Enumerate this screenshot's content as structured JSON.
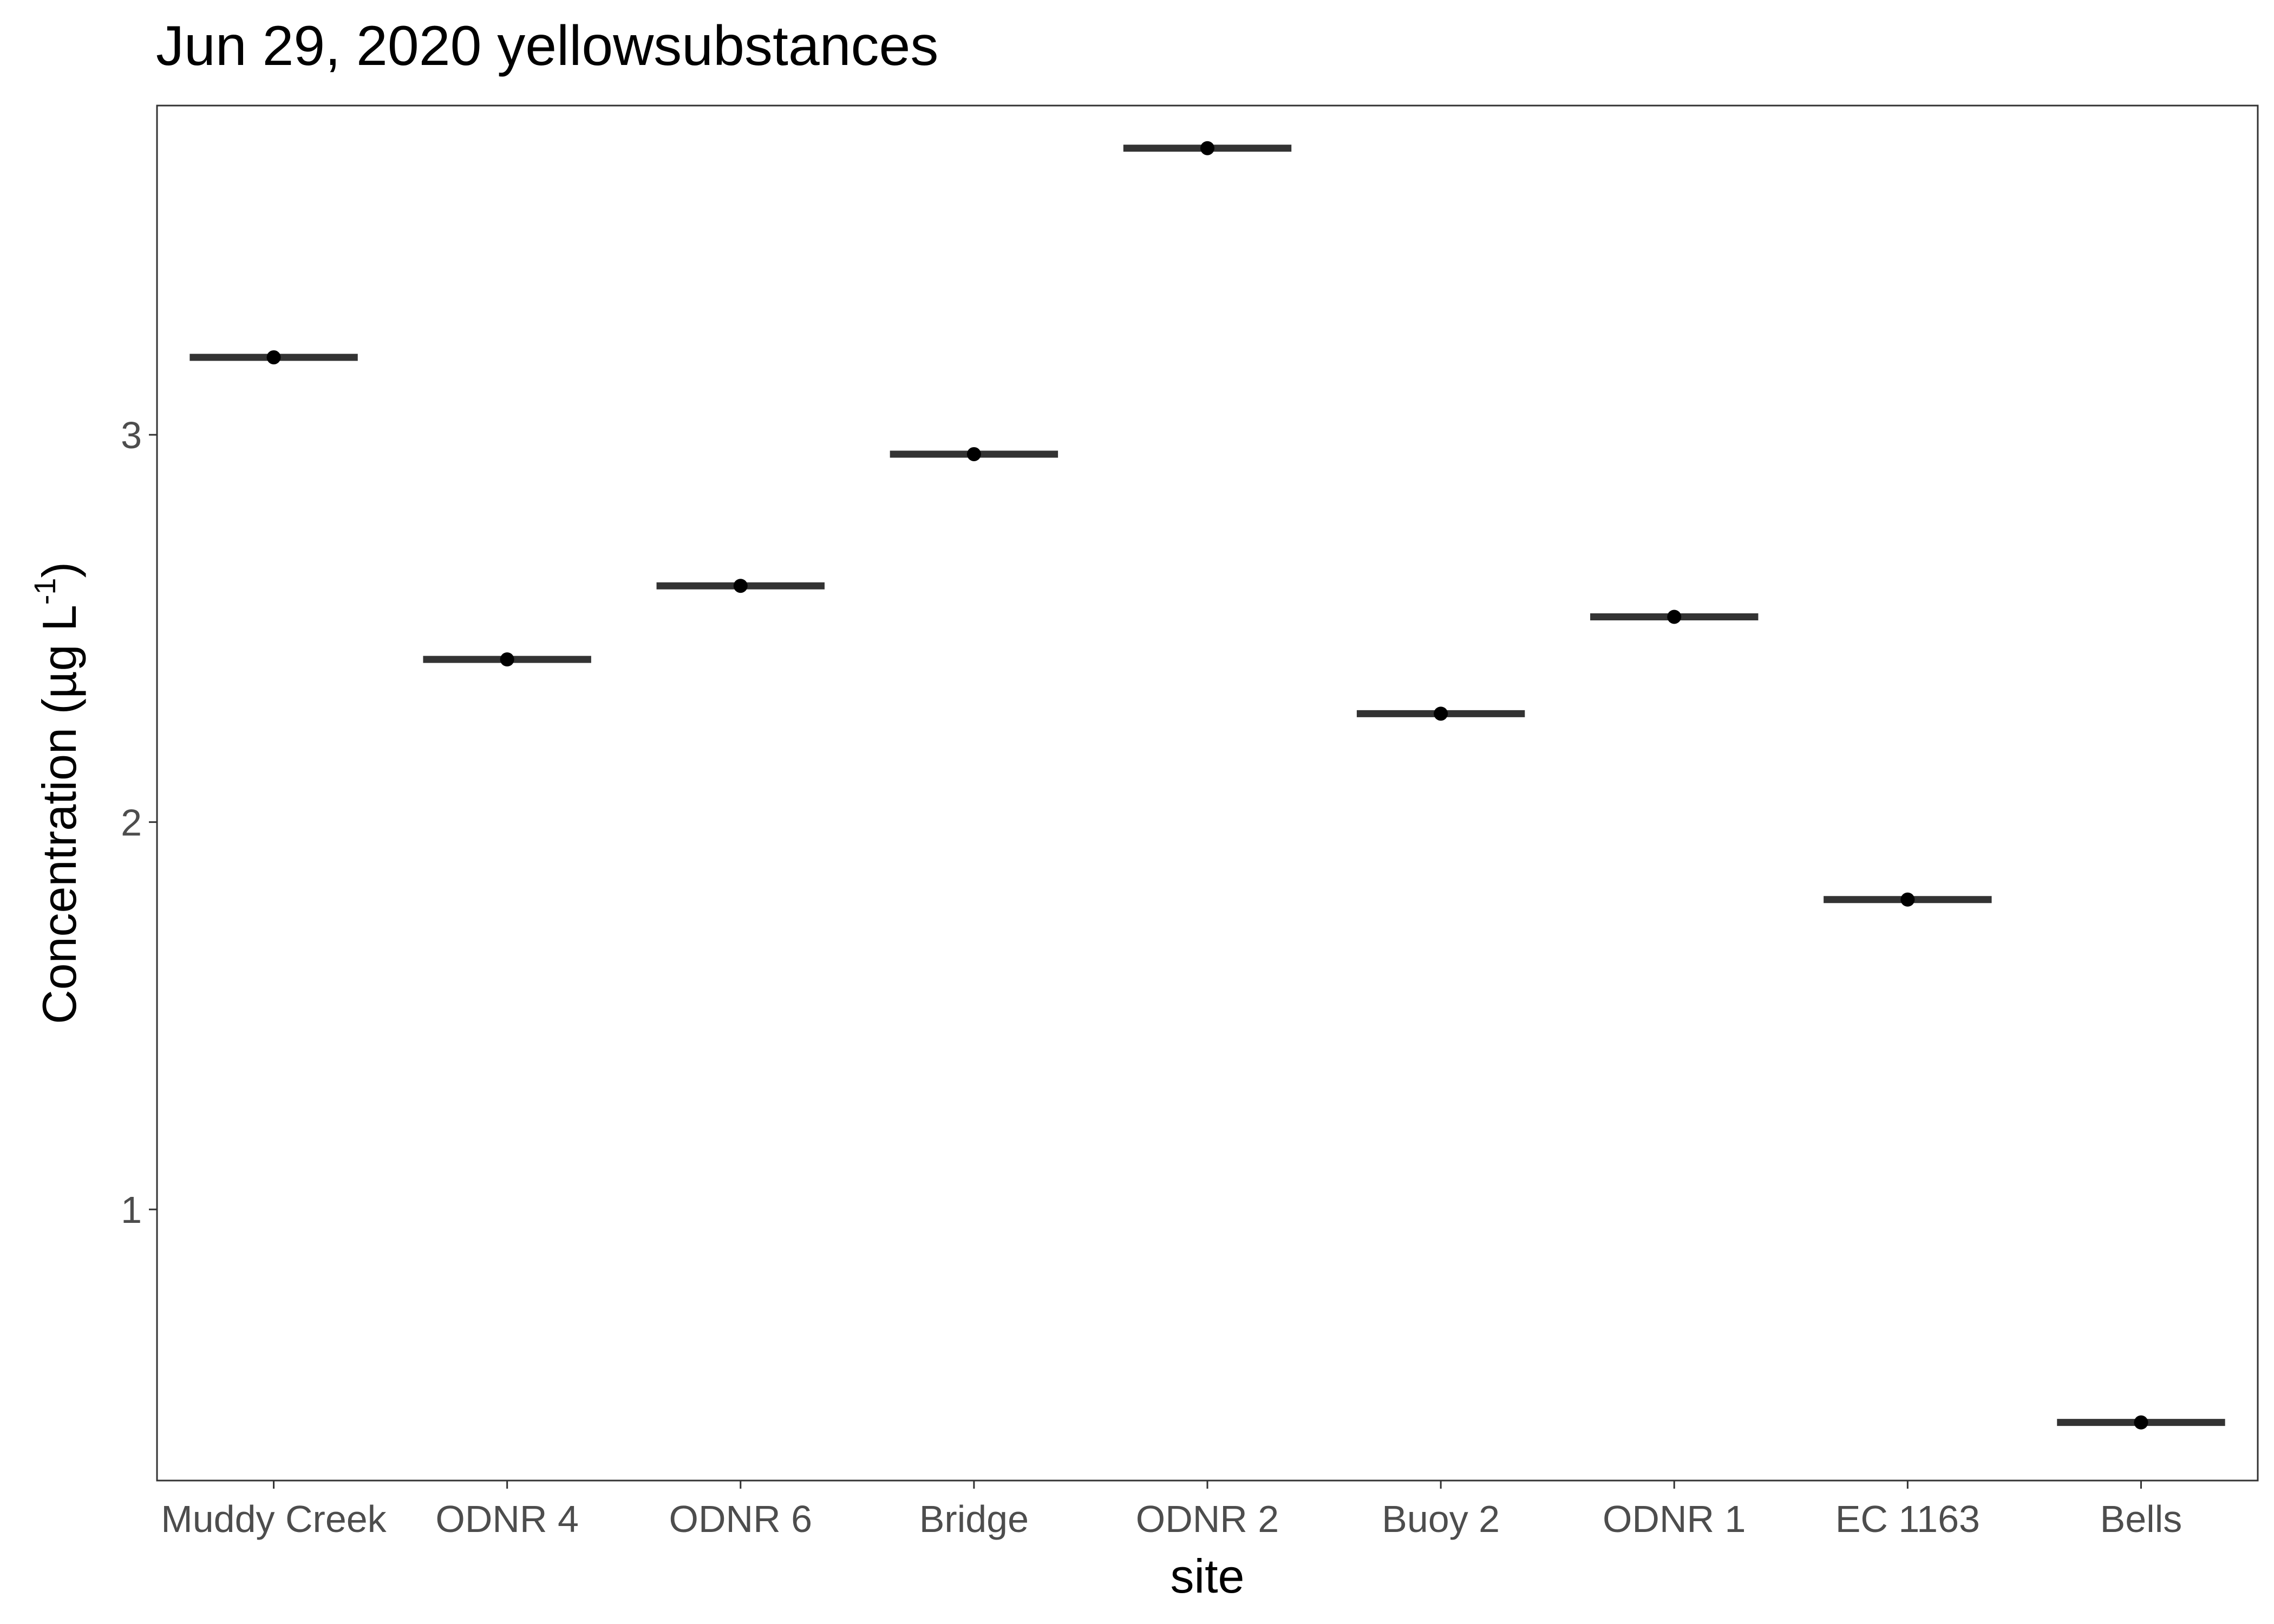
{
  "chart_data": {
    "type": "crossbar",
    "title": "Jun 29, 2020 yellowsubstances",
    "xlabel": "site",
    "ylabel": {
      "prefix": "Concentration (µg L",
      "superscript": "-1",
      "suffix": ")"
    },
    "ylim": [
      0.3,
      3.85
    ],
    "yticks": [
      1,
      2,
      3
    ],
    "categories": [
      "Muddy Creek",
      "ODNR 4",
      "ODNR 6",
      "Bridge",
      "ODNR 2",
      "Buoy 2",
      "ODNR 1",
      "EC 1163",
      "Bells"
    ],
    "values": [
      3.2,
      2.42,
      2.61,
      2.95,
      3.74,
      2.28,
      2.53,
      1.8,
      0.45
    ],
    "colors": {
      "bar": "#333333",
      "point": "#000000",
      "frame": "#333333",
      "tick_label": "#4d4d4d"
    }
  }
}
